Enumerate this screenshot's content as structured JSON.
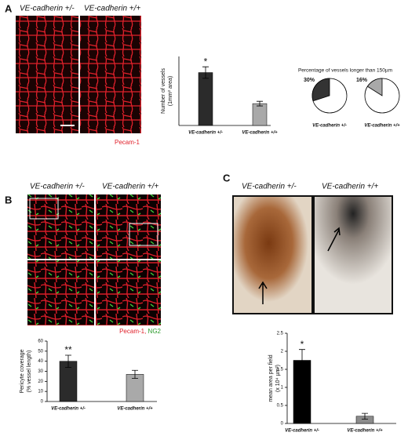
{
  "panels": {
    "a": {
      "label": "A",
      "left": "VE-cadherin +/-",
      "right": "VE-cadherin +/+",
      "stain": "Pecam-1"
    },
    "b": {
      "label": "B",
      "left": "VE-cadherin +/-",
      "right": "VE-cadherin +/+",
      "stain1": "Pecam-1,",
      "stain2": "NG2"
    },
    "c": {
      "label": "C",
      "left": "VE-cadherin +/-",
      "right": "VE-cadherin +/+"
    }
  },
  "chart_data": [
    {
      "type": "bar",
      "ylabel": [
        "Number of vessels",
        "(1mm² area)"
      ],
      "categories": [
        "VE-cadherin +/-",
        "VE-cadherin +/+"
      ],
      "values": [
        46,
        19
      ],
      "errors": [
        5,
        2
      ],
      "colors": [
        "#2b2b2b",
        "#a9a9a9"
      ],
      "ylim": [
        0,
        60
      ],
      "annotation": "*"
    },
    {
      "type": "pie",
      "title": "Percentage of vessels longer than 150µm",
      "categories": [
        "VE-cadherin +/-"
      ],
      "values": [
        30
      ],
      "value_labels": [
        "30%"
      ],
      "color": "#333333"
    },
    {
      "type": "pie",
      "categories": [
        "VE-cadherin +/+"
      ],
      "values": [
        16
      ],
      "value_labels": [
        "16%"
      ],
      "color": "#a9a9a9"
    },
    {
      "type": "bar",
      "ylabel": [
        "Pericyte coverage",
        "(% vessel length)"
      ],
      "categories": [
        "VE-cadherin +/-",
        "VE-cadherin +/+"
      ],
      "values": [
        40,
        27
      ],
      "errors": [
        6,
        4
      ],
      "colors": [
        "#2b2b2b",
        "#a9a9a9"
      ],
      "ylim": [
        0,
        60
      ],
      "yticks": [
        0,
        10,
        20,
        30,
        40,
        50,
        60
      ],
      "annotation": "**"
    },
    {
      "type": "bar",
      "ylabel": [
        "mean area per field",
        "(x 10⁴ µm²)"
      ],
      "categories": [
        "VE-cadherin +/-",
        "VE-cadherin +/+"
      ],
      "values": [
        1.75,
        0.2
      ],
      "errors": [
        0.3,
        0.08
      ],
      "colors": [
        "#000000",
        "#8c8c8c"
      ],
      "ylim": [
        0,
        2.5
      ],
      "yticks": [
        0,
        0.5,
        1,
        1.5,
        2,
        2.5
      ],
      "annotation": "*"
    }
  ]
}
